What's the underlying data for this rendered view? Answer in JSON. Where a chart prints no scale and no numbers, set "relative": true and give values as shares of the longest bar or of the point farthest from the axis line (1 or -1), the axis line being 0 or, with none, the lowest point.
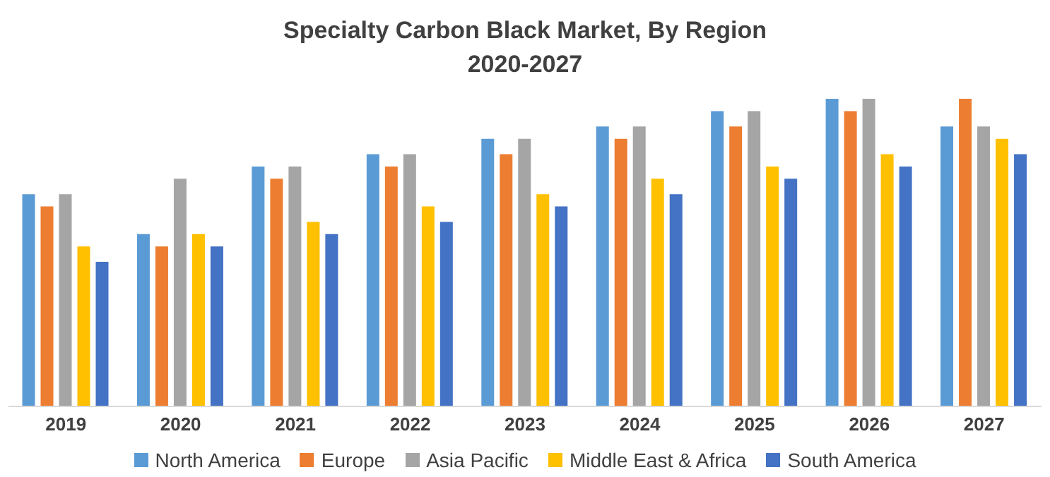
{
  "chart_data": {
    "type": "bar",
    "title": "Specialty Carbon Black Market, By Region 2020-2027",
    "relative": true,
    "legend": "bottom",
    "grid": false,
    "categories": [
      "2019",
      "2020",
      "2021",
      "2022",
      "2023",
      "2024",
      "2025",
      "2026",
      "2027"
    ],
    "series": [
      {
        "name": "North America",
        "color": "#5b9bd5",
        "values": [
          0.69,
          0.56,
          0.78,
          0.82,
          0.87,
          0.91,
          0.96,
          1,
          0.91
        ]
      },
      {
        "name": "Europe",
        "color": "#ed7d31",
        "values": [
          0.65,
          0.52,
          0.74,
          0.78,
          0.82,
          0.87,
          0.91,
          0.96,
          1
        ]
      },
      {
        "name": "Asia Pacific",
        "color": "#a5a5a5",
        "values": [
          0.69,
          0.74,
          0.78,
          0.82,
          0.87,
          0.91,
          0.96,
          1,
          0.91
        ]
      },
      {
        "name": "Middle East & Africa",
        "color": "#ffc000",
        "values": [
          0.52,
          0.56,
          0.6,
          0.65,
          0.69,
          0.74,
          0.78,
          0.82,
          0.87
        ]
      },
      {
        "name": "South America",
        "color": "#4472c4",
        "values": [
          0.47,
          0.52,
          0.56,
          0.6,
          0.65,
          0.69,
          0.74,
          0.78,
          0.82
        ]
      }
    ]
  }
}
